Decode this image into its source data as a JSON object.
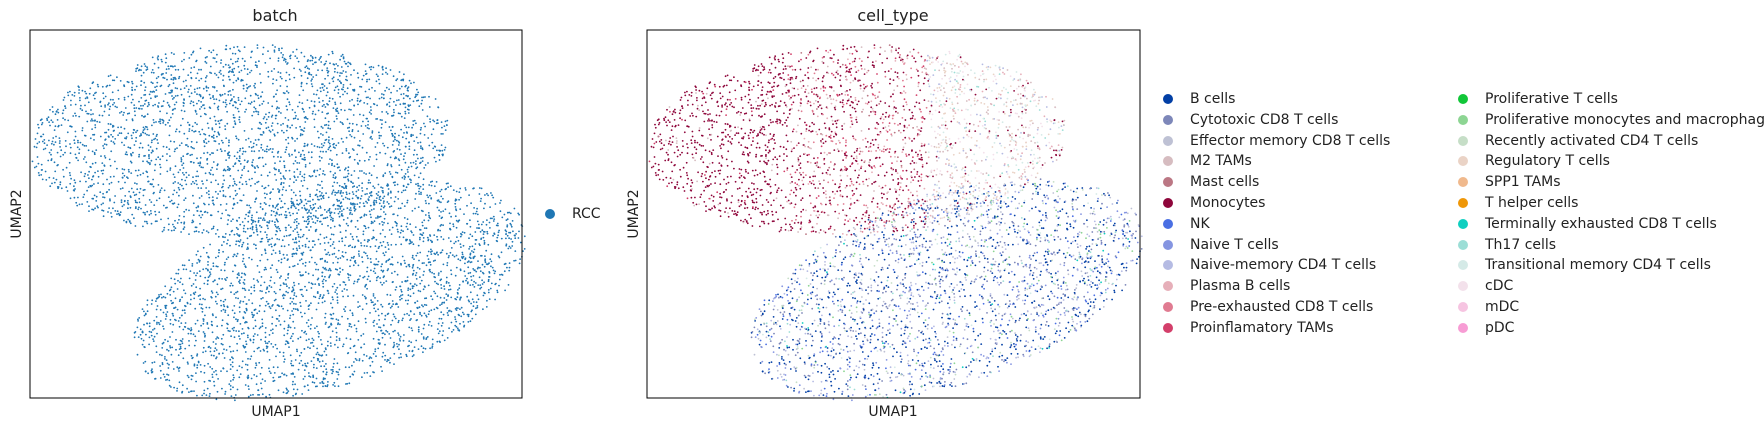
{
  "chart_data": [
    {
      "type": "scatter",
      "title": "batch",
      "xlabel": "UMAP1",
      "ylabel": "UMAP2",
      "ticks": "none",
      "legend_position": "right",
      "categories": [
        {
          "name": "RCC",
          "color": "#1f77b4"
        }
      ]
    },
    {
      "type": "scatter",
      "title": "cell_type",
      "xlabel": "UMAP1",
      "ylabel": "UMAP2",
      "ticks": "none",
      "legend_position": "right",
      "categories": [
        {
          "name": "B cells",
          "color": "#023fa5"
        },
        {
          "name": "Cytotoxic CD8 T cells",
          "color": "#7d87b9"
        },
        {
          "name": "Effector memory CD8 T cells",
          "color": "#bec1d4"
        },
        {
          "name": "M2 TAMs",
          "color": "#d6bcc0"
        },
        {
          "name": "Mast cells",
          "color": "#bb7784"
        },
        {
          "name": "Monocytes",
          "color": "#8e063b"
        },
        {
          "name": "NK",
          "color": "#4a6fe3"
        },
        {
          "name": "Naive T cells",
          "color": "#8595e1"
        },
        {
          "name": "Naive-memory CD4 T cells",
          "color": "#b5bbe3"
        },
        {
          "name": "Plasma B cells",
          "color": "#e6afb9"
        },
        {
          "name": "Pre-exhausted CD8 T cells",
          "color": "#e07b91"
        },
        {
          "name": "Proinflamatory TAMs",
          "color": "#d33f6a"
        },
        {
          "name": "Proliferative T cells",
          "color": "#11c638"
        },
        {
          "name": "Proliferative monocytes and macrophages",
          "color": "#8dd593"
        },
        {
          "name": "Recently activated CD4 T cells",
          "color": "#c6dec7"
        },
        {
          "name": "Regulatory T cells",
          "color": "#ead3c6"
        },
        {
          "name": "SPP1 TAMs",
          "color": "#f0b98d"
        },
        {
          "name": "T helper cells",
          "color": "#ef9708"
        },
        {
          "name": "Terminally exhausted CD8 T cells",
          "color": "#0fcfc0"
        },
        {
          "name": "Th17 cells",
          "color": "#9cded6"
        },
        {
          "name": "Transitional memory CD4 T cells",
          "color": "#d5eae7"
        },
        {
          "name": "cDC",
          "color": "#f3e1eb"
        },
        {
          "name": "mDC",
          "color": "#f6c4e1"
        },
        {
          "name": "pDC",
          "color": "#f79cd4"
        }
      ]
    }
  ]
}
